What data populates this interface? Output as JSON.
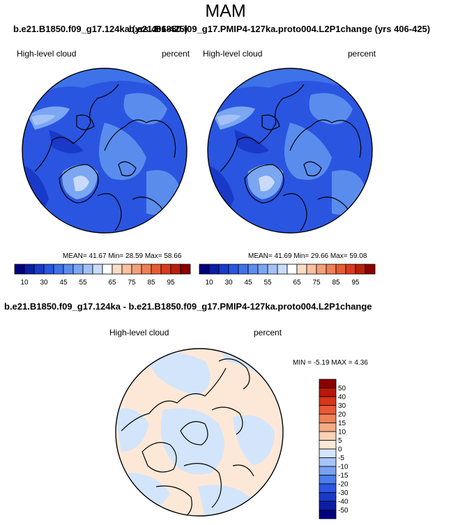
{
  "title": "MAM",
  "panels": [
    {
      "case_title": "b.e21.B1850.f09_g17.124ka (yrs 406-425)",
      "variable": "High-level cloud",
      "units": "percent",
      "stats": {
        "mean": "41.67",
        "min": "28.59",
        "max": "58.66"
      },
      "stats_text": "MEAN= 41.67  Min= 28.59  Max= 58.66"
    },
    {
      "case_title": "b.e21.B1850.f09_g17.PMIP4-127ka.proto004.L2P1change (yrs 406-425)",
      "variable": "High-level cloud",
      "units": "percent",
      "stats": {
        "mean": "41.69",
        "min": "29.66",
        "max": "59.08"
      },
      "stats_text": "MEAN= 41.69  Min= 29.66  Max= 59.08"
    },
    {
      "case_title": "b.e21.B1850.f09_g17.124ka - b.e21.B1850.f09_g17.PMIP4-127ka.proto004.L2P1change",
      "variable": "High-level cloud",
      "units": "percent",
      "stats_text": "MIN = -5.19 MAX =  4.36"
    }
  ],
  "colorbar_abs": {
    "colors": [
      "#00007f",
      "#0a1fa6",
      "#1939c9",
      "#2a55e0",
      "#3e72e8",
      "#5a8cee",
      "#7aa6f2",
      "#a3c1f6",
      "#cadbfa",
      "#ffffff",
      "#fbdcc8",
      "#f8c0a0",
      "#f4a07b",
      "#ef7f56",
      "#e85c33",
      "#d93a1c",
      "#bb1f0d",
      "#8b0000"
    ],
    "tick_labels": [
      "10",
      "30",
      "45",
      "55",
      "65",
      "75",
      "85",
      "95"
    ]
  },
  "colorbar_diff": {
    "colors": [
      "#00007f",
      "#0a1fa6",
      "#1939c9",
      "#2a55e0",
      "#4a7ee8",
      "#78a2f0",
      "#a8c4f6",
      "#d3e5fb",
      "#fde8d8",
      "#fbd1b6",
      "#f6aa85",
      "#f08258",
      "#e85a33",
      "#d8351b",
      "#b9170a",
      "#8b0000"
    ],
    "tick_labels": [
      "50",
      "40",
      "30",
      "20",
      "15",
      "10",
      "5",
      "0",
      "-5",
      "-10",
      "-15",
      "-20",
      "-30",
      "-40",
      "-50"
    ]
  }
}
